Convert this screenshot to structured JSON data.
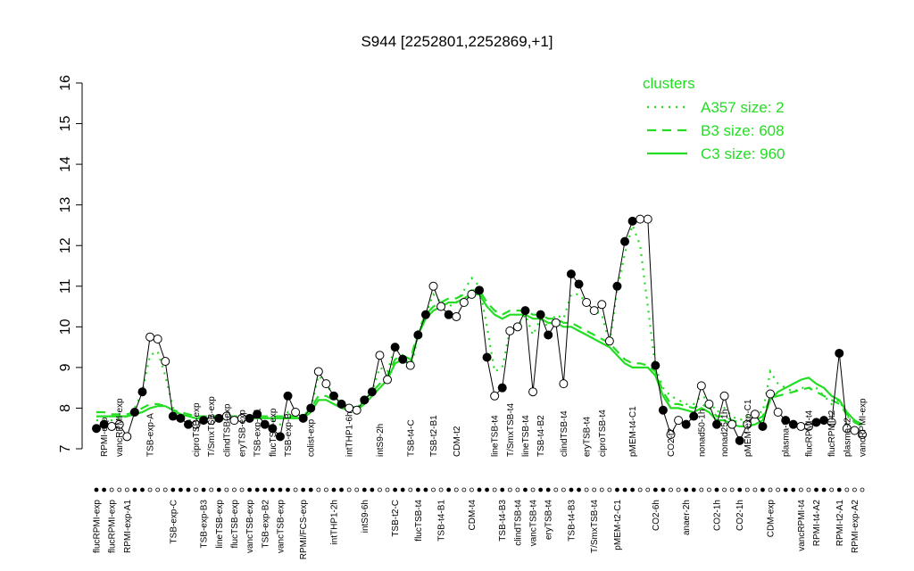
{
  "chart_data": {
    "type": "line",
    "title": "S944 [2252801,2252869,+1]",
    "categories": [
      "flucRPMI-exp",
      "RPMI-exp",
      "flucRPMI-exp",
      "vancRPMI-exp",
      "RPMI-exp-A1",
      null,
      null,
      "TSB-exp-A",
      null,
      null,
      "TSB-exp-C",
      null,
      null,
      "ciproTSB-exp",
      "TSB-exp-B3",
      "T/SmxTSB-exp",
      "lineTSB-exp",
      "clindTSB-exp",
      "flucTSB-exp",
      "eryTSB-exp",
      "vancTSB-exp",
      "TSB-exp-B1",
      "TSB-exp-B2",
      "flucTSB-exp",
      "vancTSB-exp",
      "TSB-exp-B",
      null,
      "RPMI/FCS-exp",
      "colist-exp",
      null,
      null,
      "intTHP1-2h",
      null,
      "intTHP1-6h",
      null,
      "intS9-6h",
      null,
      "intS9-2h",
      null,
      "TSB-t2-C",
      null,
      "TSB-t4-C",
      "flucTSB-t4",
      null,
      "TSB-t2-B1",
      "TSB-t4-B1",
      null,
      "CDM-t2",
      null,
      "CDM-t4",
      null,
      null,
      "lineTSB-t4",
      "TSB-t4-B3",
      "T/SmxTSB-t4",
      "clindTSB-t4",
      "lineTSB-t4",
      "vancTSB-t4",
      "TSB-t4-B2",
      "eryTSB-t4",
      null,
      "clindTSB-t4",
      "TSB-t4-B3",
      null,
      "eryTSB-t4",
      "T/SmxTSB-t4",
      "ciproTSB-t4",
      null,
      "pMEM-t2-C1",
      null,
      "pMEM-t4-C1",
      null,
      null,
      "CO2-6h",
      null,
      "CO2-t2",
      null,
      "anaer-2h",
      null,
      "nonad50-1h",
      null,
      "CO2-1h",
      "nonad25-1h",
      null,
      "CO2-1h",
      "pMEM-exp-C1",
      null,
      null,
      "CDM-exp",
      null,
      "plasma-t4",
      null,
      "vancRPMI-t4",
      "flucRPMI-t4",
      "RPMI-t4-A2",
      null,
      "flucRPMI-t2",
      "RPMI-t2-A1",
      "plasma-t2",
      "RPMI-exp-A2",
      "vancRPMI-exp"
    ],
    "values": [
      7.5,
      7.6,
      7.55,
      7.6,
      7.3,
      7.9,
      8.4,
      9.75,
      9.7,
      9.15,
      7.8,
      7.75,
      7.6,
      7.6,
      7.7,
      7.7,
      7.75,
      7.8,
      7.7,
      7.75,
      7.75,
      7.85,
      7.6,
      7.5,
      7.3,
      8.3,
      7.9,
      7.75,
      8.0,
      8.9,
      8.6,
      8.3,
      8.1,
      8.0,
      7.95,
      8.2,
      8.4,
      9.3,
      8.7,
      9.5,
      9.2,
      9.05,
      9.8,
      10.3,
      11.0,
      10.5,
      10.3,
      10.25,
      10.6,
      10.8,
      10.9,
      9.25,
      8.3,
      8.5,
      9.9,
      10.0,
      10.4,
      8.4,
      10.3,
      9.8,
      10.1,
      8.6,
      11.3,
      11.05,
      10.6,
      10.4,
      10.55,
      9.65,
      11.0,
      12.1,
      12.6,
      12.65,
      12.65,
      9.05,
      7.95,
      7.35,
      7.7,
      7.6,
      7.8,
      8.55,
      8.1,
      7.6,
      8.3,
      7.6,
      7.2,
      7.6,
      7.85,
      7.55,
      8.35,
      7.9,
      7.7,
      7.6,
      7.55,
      7.55,
      7.65,
      7.7,
      7.65,
      9.35,
      7.5,
      7.45,
      7.35
    ],
    "point_fills": [
      "#000",
      "#000",
      "#fff",
      "#fff",
      "#fff",
      "#000",
      "#000",
      "#fff",
      "#fff",
      "#fff",
      "#000",
      "#000",
      "#000",
      "#fff",
      "#000",
      "#fff",
      "#000",
      "#fff",
      "#fff",
      "#fff",
      "#000",
      "#000",
      "#000",
      "#000",
      "#000",
      "#000",
      "#fff",
      "#000",
      "#000",
      "#fff",
      "#fff",
      "#000",
      "#000",
      "#fff",
      "#fff",
      "#000",
      "#000",
      "#fff",
      "#fff",
      "#000",
      "#000",
      "#fff",
      "#000",
      "#000",
      "#fff",
      "#fff",
      "#000",
      "#fff",
      "#fff",
      "#fff",
      "#000",
      "#000",
      "#fff",
      "#000",
      "#fff",
      "#fff",
      "#000",
      "#fff",
      "#000",
      "#000",
      "#fff",
      "#fff",
      "#000",
      "#000",
      "#fff",
      "#fff",
      "#fff",
      "#fff",
      "#000",
      "#000",
      "#000",
      "#fff",
      "#fff",
      "#000",
      "#000",
      "#fff",
      "#fff",
      "#000",
      "#000",
      "#fff",
      "#fff",
      "#000",
      "#fff",
      "#fff",
      "#000",
      "#fff",
      "#fff",
      "#000",
      "#fff",
      "#fff",
      "#000",
      "#000",
      "#fff",
      "#fff",
      "#000",
      "#000",
      "#fff",
      "#000",
      "#fff",
      "#fff",
      "#fff"
    ],
    "line_color": "#000",
    "legend_title": "clusters",
    "legend": "top-right",
    "series": [
      {
        "name": "A357 size: 2",
        "color": "#22dd22",
        "dash": "dotted",
        "values": [
          7.7,
          7.7,
          7.7,
          7.75,
          7.8,
          8.0,
          8.4,
          9.3,
          9.4,
          8.8,
          8.0,
          7.8,
          7.7,
          7.7,
          7.7,
          7.7,
          7.75,
          7.75,
          7.75,
          7.75,
          7.75,
          7.8,
          7.8,
          7.7,
          7.6,
          7.9,
          7.9,
          7.8,
          8.0,
          8.8,
          8.6,
          8.3,
          8.1,
          8.0,
          8.0,
          8.2,
          8.4,
          9.0,
          8.9,
          9.5,
          9.3,
          8.9,
          9.8,
          10.3,
          10.8,
          10.6,
          10.5,
          10.6,
          10.9,
          11.2,
          11.0,
          10.0,
          8.9,
          9.0,
          9.9,
          10.0,
          10.3,
          9.8,
          10.2,
          10.0,
          10.3,
          10.2,
          10.8,
          10.8,
          10.6,
          10.4,
          10.3,
          9.6,
          10.9,
          11.8,
          12.5,
          12.0,
          10.5,
          9.0,
          8.5,
          8.3,
          8.2,
          8.1,
          8.1,
          8.3,
          8.2,
          7.9,
          8.0,
          7.8,
          7.7,
          7.8,
          7.9,
          7.9,
          8.9,
          8.6,
          8.5,
          8.4,
          8.5,
          8.5,
          8.5,
          8.3,
          8.1,
          8.2,
          7.8,
          7.7,
          7.6
        ]
      },
      {
        "name": "B3 size: 608",
        "color": "#22dd22",
        "dash": "dashed",
        "values": [
          7.9,
          7.9,
          7.85,
          7.85,
          7.85,
          7.9,
          8.0,
          8.1,
          8.1,
          8.05,
          7.95,
          7.9,
          7.85,
          7.8,
          7.8,
          7.8,
          7.8,
          7.8,
          7.8,
          7.8,
          7.8,
          7.8,
          7.8,
          7.8,
          7.8,
          7.8,
          7.8,
          7.8,
          8.0,
          8.3,
          8.3,
          8.2,
          8.1,
          8.05,
          8.0,
          8.2,
          8.4,
          8.6,
          8.8,
          9.2,
          9.3,
          9.2,
          9.9,
          10.3,
          10.5,
          10.6,
          10.7,
          10.7,
          10.8,
          10.9,
          10.9,
          10.6,
          10.4,
          10.3,
          10.4,
          10.4,
          10.4,
          10.3,
          10.3,
          10.2,
          10.2,
          10.1,
          10.1,
          10.0,
          9.9,
          9.8,
          9.7,
          9.6,
          9.4,
          9.2,
          9.1,
          9.1,
          9.05,
          8.9,
          8.4,
          8.1,
          8.1,
          8.05,
          8.0,
          8.1,
          8.0,
          7.8,
          7.8,
          7.7,
          7.65,
          7.65,
          7.7,
          7.8,
          8.25,
          8.3,
          8.35,
          8.4,
          8.45,
          8.5,
          8.4,
          8.3,
          8.2,
          8.1,
          7.85,
          7.65,
          7.55
        ]
      },
      {
        "name": "C3 size: 960",
        "color": "#22dd22",
        "dash": "solid",
        "values": [
          7.8,
          7.8,
          7.8,
          7.8,
          7.8,
          7.85,
          7.9,
          8.0,
          8.05,
          8.05,
          7.95,
          7.85,
          7.8,
          7.75,
          7.75,
          7.75,
          7.75,
          7.75,
          7.75,
          7.75,
          7.75,
          7.75,
          7.75,
          7.75,
          7.75,
          7.75,
          7.75,
          7.75,
          7.9,
          8.2,
          8.2,
          8.1,
          8.0,
          7.95,
          7.95,
          8.1,
          8.3,
          8.5,
          8.7,
          9.1,
          9.2,
          9.1,
          9.8,
          10.2,
          10.4,
          10.5,
          10.6,
          10.6,
          10.7,
          10.8,
          10.8,
          10.5,
          10.3,
          10.2,
          10.3,
          10.3,
          10.3,
          10.2,
          10.2,
          10.1,
          10.1,
          10.0,
          10.0,
          9.9,
          9.8,
          9.7,
          9.6,
          9.5,
          9.3,
          9.1,
          9.0,
          9.0,
          9.0,
          8.8,
          8.3,
          8.0,
          8.0,
          7.95,
          7.9,
          8.0,
          7.9,
          7.7,
          7.7,
          7.6,
          7.55,
          7.55,
          7.6,
          7.7,
          8.2,
          8.4,
          8.5,
          8.6,
          8.7,
          8.75,
          8.6,
          8.5,
          8.3,
          8.2,
          7.9,
          7.7,
          7.6
        ]
      }
    ],
    "ylim": [
      7,
      16
    ],
    "yticks": [
      7,
      8,
      9,
      10,
      11,
      12,
      13,
      14,
      15,
      16
    ]
  }
}
